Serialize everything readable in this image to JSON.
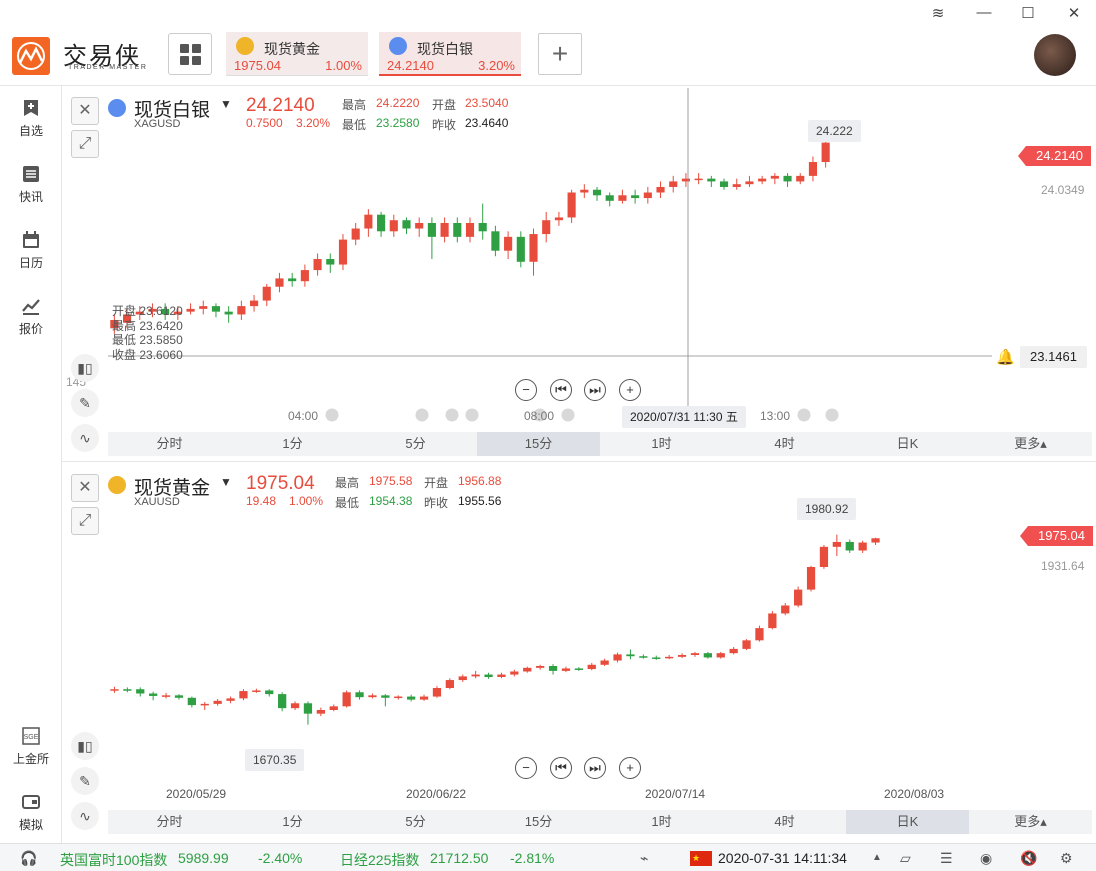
{
  "app": {
    "logo_text": "交易侠",
    "logo_sub": "TRADER MASTER"
  },
  "tabs": [
    {
      "name": "现货黄金",
      "price": "1975.04",
      "pct": "1.00%",
      "coin_color": "#f0b429"
    },
    {
      "name": "现货白银",
      "price": "24.2140",
      "pct": "3.20%",
      "coin_color": "#5b8def"
    }
  ],
  "sidebar": {
    "items": [
      {
        "label": "自选",
        "icon": "bookmark-plus-icon"
      },
      {
        "label": "快讯",
        "icon": "news-list-icon"
      },
      {
        "label": "日历",
        "icon": "calendar-icon"
      },
      {
        "label": "报价",
        "icon": "quote-line-icon"
      },
      {
        "label": "上金所",
        "icon": "sge-icon"
      },
      {
        "label": "模拟",
        "icon": "wallet-icon"
      }
    ]
  },
  "silver": {
    "name": "现货白银",
    "code": "XAGUSD",
    "price": "24.2140",
    "change": "0.7500",
    "change_pct": "3.20%",
    "high_label": "最高",
    "high": "24.2220",
    "open_label": "开盘",
    "open": "23.5040",
    "low_label": "最低",
    "low": "23.2580",
    "prev_label": "昨收",
    "prev": "23.4640",
    "tag_price": "24.2140",
    "side_price": "24.0349",
    "max_hint": "24.222",
    "crosshair_price": "23.1461",
    "crosshair_time": "2020/07/31 11:30 五",
    "ohlc_tip": {
      "open_label": "开盘",
      "open": "23.6120",
      "high_label": "最高",
      "high": "23.6420",
      "low_label": "最低",
      "low": "23.5850",
      "close_label": "收盘",
      "close": "23.6060"
    },
    "left_cut": "145",
    "time_labels": [
      "04:00",
      "08:00",
      "13:00"
    ],
    "timeframes": [
      "分时",
      "1分",
      "5分",
      "15分",
      "1时",
      "4时",
      "日K",
      "更多▴"
    ],
    "active_tf": 3,
    "candles": [
      [
        23.55,
        23.58,
        23.53,
        23.6
      ],
      [
        23.57,
        23.6,
        23.55,
        23.62
      ],
      [
        23.6,
        23.61,
        23.58,
        23.63
      ],
      [
        23.61,
        23.62,
        23.59,
        23.64
      ],
      [
        23.62,
        23.6,
        23.58,
        23.64
      ],
      [
        23.6,
        23.61,
        23.58,
        23.63
      ],
      [
        23.61,
        23.62,
        23.6,
        23.64
      ],
      [
        23.62,
        23.63,
        23.6,
        23.65
      ],
      [
        23.63,
        23.61,
        23.59,
        23.64
      ],
      [
        23.61,
        23.6,
        23.57,
        23.63
      ],
      [
        23.6,
        23.63,
        23.58,
        23.65
      ],
      [
        23.63,
        23.65,
        23.61,
        23.67
      ],
      [
        23.65,
        23.7,
        23.63,
        23.71
      ],
      [
        23.7,
        23.73,
        23.68,
        23.75
      ],
      [
        23.73,
        23.72,
        23.7,
        23.75
      ],
      [
        23.72,
        23.76,
        23.7,
        23.78
      ],
      [
        23.76,
        23.8,
        23.74,
        23.82
      ],
      [
        23.8,
        23.78,
        23.75,
        23.82
      ],
      [
        23.78,
        23.87,
        23.76,
        23.89
      ],
      [
        23.87,
        23.91,
        23.85,
        23.93
      ],
      [
        23.91,
        23.96,
        23.88,
        23.98
      ],
      [
        23.96,
        23.9,
        23.88,
        23.97
      ],
      [
        23.9,
        23.94,
        23.88,
        23.96
      ],
      [
        23.94,
        23.91,
        23.89,
        23.95
      ],
      [
        23.91,
        23.93,
        23.88,
        23.95
      ],
      [
        23.93,
        23.88,
        23.8,
        23.95
      ],
      [
        23.88,
        23.93,
        23.86,
        23.95
      ],
      [
        23.93,
        23.88,
        23.86,
        23.95
      ],
      [
        23.88,
        23.93,
        23.86,
        23.95
      ],
      [
        23.93,
        23.9,
        23.87,
        24.0
      ],
      [
        23.9,
        23.83,
        23.81,
        23.92
      ],
      [
        23.83,
        23.88,
        23.8,
        23.9
      ],
      [
        23.88,
        23.79,
        23.77,
        23.9
      ],
      [
        23.79,
        23.89,
        23.74,
        23.91
      ],
      [
        23.89,
        23.94,
        23.86,
        23.97
      ],
      [
        23.94,
        23.95,
        23.92,
        23.97
      ],
      [
        23.95,
        24.04,
        23.93,
        24.05
      ],
      [
        24.04,
        24.05,
        24.02,
        24.07
      ],
      [
        24.05,
        24.03,
        24.01,
        24.06
      ],
      [
        24.03,
        24.01,
        23.99,
        24.04
      ],
      [
        24.01,
        24.03,
        24.0,
        24.05
      ],
      [
        24.03,
        24.02,
        24.0,
        24.05
      ],
      [
        24.02,
        24.04,
        24.0,
        24.06
      ],
      [
        24.04,
        24.06,
        24.02,
        24.08
      ],
      [
        24.06,
        24.08,
        24.04,
        24.1
      ],
      [
        24.08,
        24.09,
        24.06,
        24.11
      ],
      [
        24.09,
        24.09,
        24.07,
        24.11
      ],
      [
        24.09,
        24.08,
        24.06,
        24.1
      ],
      [
        24.08,
        24.06,
        24.05,
        24.09
      ],
      [
        24.06,
        24.07,
        24.05,
        24.09
      ],
      [
        24.07,
        24.08,
        24.06,
        24.1
      ],
      [
        24.08,
        24.09,
        24.07,
        24.1
      ],
      [
        24.09,
        24.1,
        24.07,
        24.11
      ],
      [
        24.1,
        24.08,
        24.06,
        24.11
      ],
      [
        24.08,
        24.1,
        24.07,
        24.11
      ],
      [
        24.1,
        24.15,
        24.08,
        24.17
      ],
      [
        24.15,
        24.22,
        24.13,
        24.222
      ]
    ],
    "price_range": [
      23.45,
      24.28
    ]
  },
  "gold": {
    "name": "现货黄金",
    "code": "XAUUSD",
    "price": "1975.04",
    "change": "19.48",
    "change_pct": "1.00%",
    "high_label": "最高",
    "high": "1975.58",
    "open_label": "开盘",
    "open": "1956.88",
    "low_label": "最低",
    "low": "1954.38",
    "prev_label": "昨收",
    "prev": "1955.56",
    "tag_price": "1975.04",
    "side_price": "1931.64",
    "max_hint": "1980.92",
    "min_hint": "1670.35",
    "date_labels": [
      "2020/05/29",
      "2020/06/22",
      "2020/07/14",
      "2020/08/03"
    ],
    "timeframes": [
      "分时",
      "1分",
      "5分",
      "15分",
      "1时",
      "4时",
      "日K",
      "更多▴"
    ],
    "active_tf": 6,
    "candles": [
      [
        1726,
        1728,
        1722,
        1732
      ],
      [
        1728,
        1727,
        1723,
        1731
      ],
      [
        1728,
        1721,
        1716,
        1731
      ],
      [
        1721,
        1717,
        1710,
        1724
      ],
      [
        1717,
        1718,
        1713,
        1722
      ],
      [
        1718,
        1714,
        1711,
        1720
      ],
      [
        1714,
        1702,
        1698,
        1716
      ],
      [
        1702,
        1704,
        1694,
        1707
      ],
      [
        1704,
        1709,
        1701,
        1712
      ],
      [
        1709,
        1713,
        1705,
        1716
      ],
      [
        1713,
        1725,
        1710,
        1728
      ],
      [
        1725,
        1726,
        1722,
        1729
      ],
      [
        1726,
        1720,
        1716,
        1728
      ],
      [
        1720,
        1697,
        1692,
        1723
      ],
      [
        1697,
        1705,
        1694,
        1708
      ],
      [
        1705,
        1688,
        1670,
        1708
      ],
      [
        1688,
        1694,
        1684,
        1698
      ],
      [
        1694,
        1700,
        1692,
        1703
      ],
      [
        1700,
        1723,
        1698,
        1726
      ],
      [
        1723,
        1715,
        1711,
        1726
      ],
      [
        1715,
        1718,
        1713,
        1721
      ],
      [
        1718,
        1714,
        1700,
        1720
      ],
      [
        1714,
        1716,
        1711,
        1718
      ],
      [
        1716,
        1711,
        1708,
        1719
      ],
      [
        1711,
        1716,
        1709,
        1719
      ],
      [
        1716,
        1730,
        1714,
        1733
      ],
      [
        1730,
        1743,
        1728,
        1746
      ],
      [
        1743,
        1749,
        1740,
        1752
      ],
      [
        1749,
        1752,
        1746,
        1758
      ],
      [
        1752,
        1748,
        1745,
        1755
      ],
      [
        1748,
        1752,
        1746,
        1755
      ],
      [
        1752,
        1757,
        1749,
        1760
      ],
      [
        1757,
        1763,
        1755,
        1765
      ],
      [
        1763,
        1766,
        1760,
        1768
      ],
      [
        1766,
        1758,
        1752,
        1769
      ],
      [
        1758,
        1762,
        1756,
        1765
      ],
      [
        1762,
        1761,
        1758,
        1764
      ],
      [
        1761,
        1768,
        1759,
        1771
      ],
      [
        1768,
        1775,
        1766,
        1778
      ],
      [
        1775,
        1785,
        1772,
        1788
      ],
      [
        1785,
        1782,
        1777,
        1793
      ],
      [
        1782,
        1780,
        1778,
        1785
      ],
      [
        1780,
        1779,
        1776,
        1783
      ],
      [
        1779,
        1781,
        1777,
        1784
      ],
      [
        1781,
        1784,
        1779,
        1787
      ],
      [
        1784,
        1787,
        1781,
        1789
      ],
      [
        1787,
        1780,
        1778,
        1789
      ],
      [
        1780,
        1787,
        1778,
        1789
      ],
      [
        1787,
        1794,
        1785,
        1797
      ],
      [
        1794,
        1808,
        1792,
        1810
      ],
      [
        1808,
        1828,
        1806,
        1832
      ],
      [
        1828,
        1852,
        1826,
        1856
      ],
      [
        1852,
        1865,
        1849,
        1869
      ],
      [
        1865,
        1891,
        1862,
        1896
      ],
      [
        1891,
        1928,
        1888,
        1930
      ],
      [
        1928,
        1961,
        1925,
        1964
      ],
      [
        1961,
        1969,
        1946,
        1981
      ],
      [
        1969,
        1955,
        1951,
        1973
      ],
      [
        1955,
        1968,
        1951,
        1971
      ],
      [
        1968,
        1975,
        1964,
        1976
      ]
    ],
    "price_range": [
      1640,
      2000
    ]
  },
  "status": {
    "index1_name": "英国富时100指数",
    "index1_value": "5989.99",
    "index1_pct": "-2.40%",
    "index2_name": "日经225指数",
    "index2_value": "21712.50",
    "index2_pct": "-2.81%",
    "datetime": "2020-07-31 14:11:34",
    "flag": "china-flag-icon"
  },
  "colors": {
    "up": "#e74c3c",
    "down": "#2ea043",
    "accent": "#f26522"
  }
}
